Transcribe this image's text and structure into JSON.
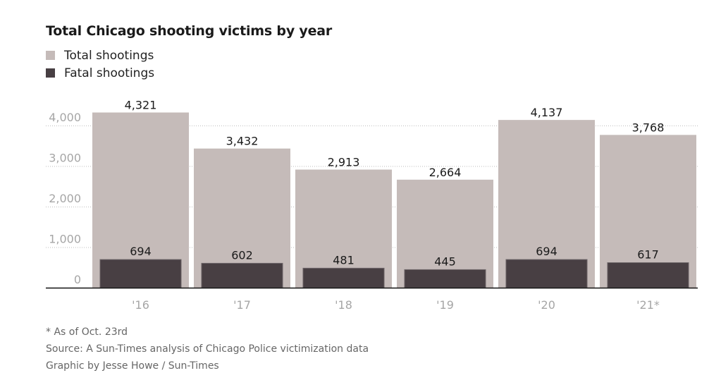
{
  "chart_data": {
    "type": "bar",
    "title": "Total Chicago shooting victims by year",
    "categories": [
      "'16",
      "'17",
      "'18",
      "'19",
      "'20",
      "'21*"
    ],
    "series": [
      {
        "name": "Total shootings",
        "color": "#c5bbb9",
        "values": [
          4321,
          3432,
          2913,
          2664,
          4137,
          3768
        ]
      },
      {
        "name": "Fatal shootings",
        "color": "#483f43",
        "values": [
          694,
          602,
          481,
          445,
          694,
          617
        ]
      }
    ],
    "data_labels": {
      "total": [
        "4,321",
        "3,432",
        "2,913",
        "2,664",
        "4,137",
        "3,768"
      ],
      "fatal": [
        "694",
        "602",
        "481",
        "445",
        "694",
        "617"
      ]
    },
    "yticks": [
      0,
      1000,
      2000,
      3000,
      4000
    ],
    "ytick_labels": [
      "0",
      "1,000",
      "2,000",
      "3,000",
      "4,000"
    ],
    "ylim": [
      0,
      4000
    ],
    "xlabel": "",
    "ylabel": "",
    "grid": true,
    "legend_position": "top-left",
    "bar_mode": "overlay"
  },
  "legend": {
    "items": [
      {
        "label": "Total shootings",
        "color": "#c5bbb9"
      },
      {
        "label": "Fatal shootings",
        "color": "#483f43"
      }
    ]
  },
  "footer": {
    "note": "* As of Oct. 23rd",
    "source": "Source: A Sun-Times analysis of Chicago Police victimization data",
    "credit": "Graphic by Jesse Howe / Sun-Times"
  }
}
